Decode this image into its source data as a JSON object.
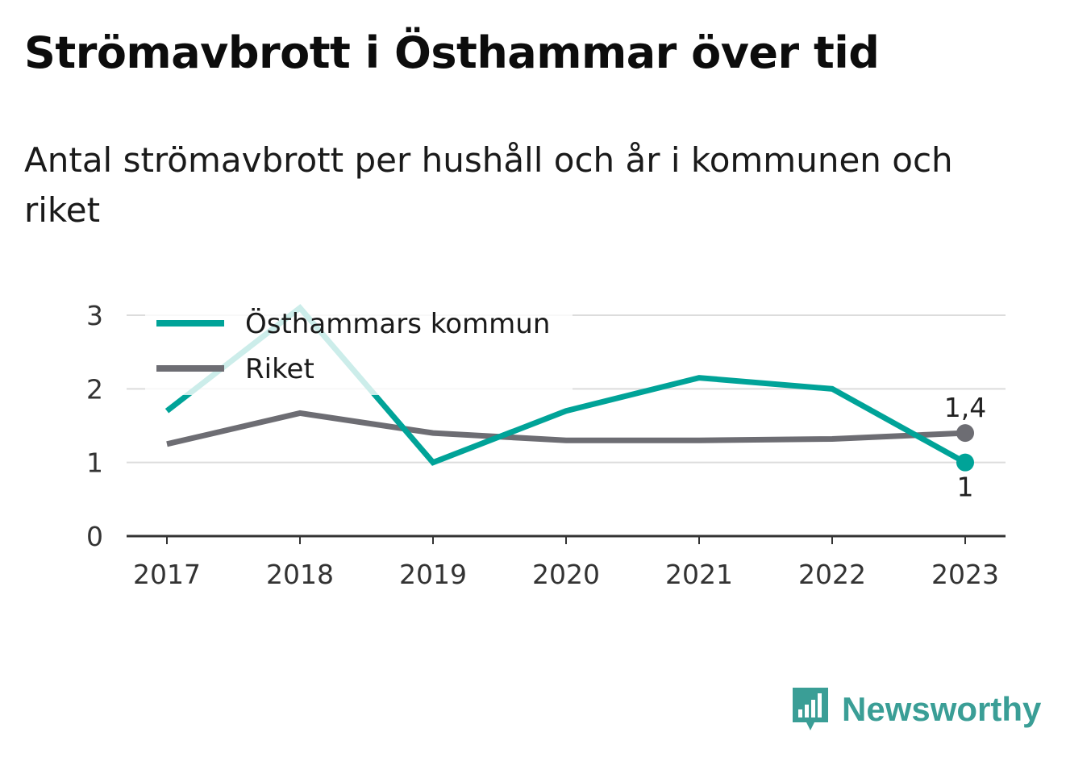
{
  "title": "Strömavbrott i Östhammar över tid",
  "subtitle": "Antal strömavbrott per hushåll och år i kommunen och riket",
  "brand": {
    "name": "Newsworthy",
    "color": "#3a9e96",
    "icon": "bar-chart-speech-bubble-icon"
  },
  "chart_data": {
    "type": "line",
    "x": [
      "2017",
      "2018",
      "2019",
      "2020",
      "2021",
      "2022",
      "2023"
    ],
    "ylim": [
      0,
      3
    ],
    "yticks": [
      "0",
      "1",
      "2",
      "3"
    ],
    "grid": true,
    "legend_position": "top-left",
    "series": [
      {
        "name": "Östhammars kommun",
        "color": "#00a398",
        "values": [
          1.7,
          3.1,
          1.0,
          1.7,
          2.15,
          2.0,
          1.0
        ],
        "end_label": "1"
      },
      {
        "name": "Riket",
        "color": "#6d6d73",
        "values": [
          1.25,
          1.67,
          1.4,
          1.3,
          1.3,
          1.32,
          1.4
        ],
        "end_label": "1,4"
      }
    ]
  }
}
